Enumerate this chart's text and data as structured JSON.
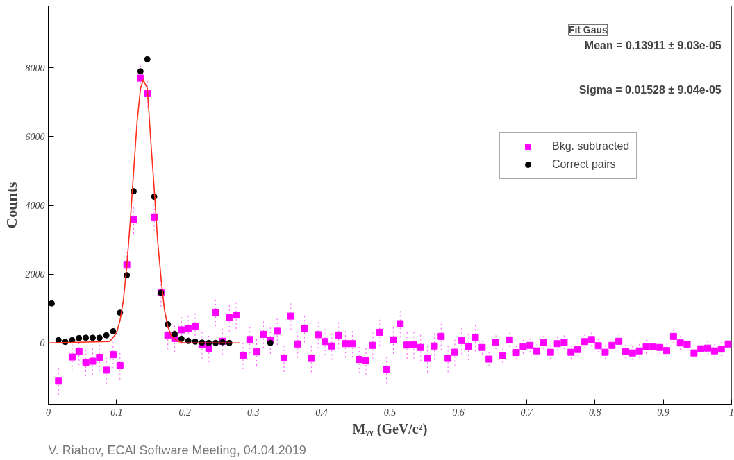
{
  "chart_data": {
    "type": "scatter",
    "xlabel": "Mᵧᵧ (GeV/c²)",
    "ylabel": "Counts",
    "xlim": [
      0,
      1
    ],
    "ylim": [
      -1800,
      9800
    ],
    "xticks": [
      0,
      0.1,
      0.2,
      0.3,
      0.4,
      0.5,
      0.6,
      0.7,
      0.8,
      0.9,
      1
    ],
    "yticks": [
      0,
      2000,
      4000,
      6000,
      8000
    ],
    "grid": false,
    "legend": "top right",
    "annotations": [
      "Fit Gaus",
      "Mean = 0.13911 ± 9.03e-05",
      "Sigma = 0.01528 ± 9.04e-05",
      "V. Riabov, ECAl Software Meeting, 04.04.2019"
    ],
    "series": [
      {
        "name": "Bkg. subtracted",
        "color": "#ff00ff",
        "marker": "square",
        "x": [
          0.015,
          0.035,
          0.045,
          0.055,
          0.065,
          0.075,
          0.085,
          0.095,
          0.105,
          0.115,
          0.125,
          0.135,
          0.145,
          0.155,
          0.165,
          0.175,
          0.185,
          0.195,
          0.205,
          0.215,
          0.225,
          0.235,
          0.245,
          0.255,
          0.265,
          0.275,
          0.285,
          0.295,
          0.305,
          0.315,
          0.325,
          0.335,
          0.345,
          0.355,
          0.365,
          0.375,
          0.385,
          0.395,
          0.405,
          0.415,
          0.425,
          0.435,
          0.445,
          0.455,
          0.465,
          0.475,
          0.485,
          0.495,
          0.505,
          0.515,
          0.525,
          0.535,
          0.545,
          0.555,
          0.565,
          0.575,
          0.585,
          0.595,
          0.605,
          0.615,
          0.625,
          0.635,
          0.645,
          0.655,
          0.665,
          0.675,
          0.685,
          0.695,
          0.705,
          0.715,
          0.725,
          0.735,
          0.745,
          0.755,
          0.765,
          0.775,
          0.785,
          0.795,
          0.805,
          0.815,
          0.825,
          0.835,
          0.845,
          0.855,
          0.865,
          0.875,
          0.885,
          0.895,
          0.905,
          0.915,
          0.925,
          0.935,
          0.945,
          0.955,
          0.965,
          0.975,
          0.985,
          0.995
        ],
        "values": [
          -1110,
          -410,
          -240,
          -560,
          -530,
          -420,
          -790,
          -340,
          -660,
          2280,
          3580,
          7700,
          7250,
          3660,
          1460,
          220,
          130,
          380,
          420,
          490,
          -50,
          -160,
          890,
          50,
          730,
          810,
          -360,
          100,
          -260,
          250,
          80,
          340,
          -440,
          780,
          -30,
          420,
          -450,
          240,
          40,
          -90,
          230,
          -20,
          -20,
          -480,
          -520,
          -70,
          310,
          -770,
          90,
          560,
          -60,
          -50,
          -130,
          -450,
          -90,
          190,
          -450,
          -270,
          70,
          -100,
          160,
          -130,
          -470,
          20,
          -370,
          90,
          -280,
          -110,
          -70,
          -230,
          10,
          -270,
          -20,
          20,
          -270,
          -190,
          40,
          100,
          -80,
          -270,
          -70,
          50,
          -250,
          -290,
          -230,
          -110,
          -110,
          -130,
          -220,
          190,
          0,
          -40,
          -290,
          -170,
          -150,
          -230,
          -180,
          -30
        ],
        "errors": [
          400,
          400,
          400,
          400,
          400,
          400,
          400,
          400,
          400,
          400,
          400,
          400,
          400,
          400,
          400,
          400,
          400,
          400,
          400,
          400,
          400,
          400,
          400,
          400,
          400,
          400,
          400,
          400,
          400,
          400,
          400,
          400,
          400,
          400,
          400,
          400,
          400,
          400,
          400,
          400,
          400,
          400,
          400,
          400,
          400,
          400,
          400,
          400,
          400,
          400,
          400,
          400,
          400,
          400,
          400,
          400,
          400,
          400,
          400,
          400,
          400,
          200,
          200,
          200,
          200,
          200,
          200,
          200,
          200,
          200,
          200,
          200,
          200,
          200,
          200,
          200,
          200,
          200,
          200,
          200,
          200,
          200,
          200,
          200,
          200,
          200,
          200,
          200,
          200,
          200,
          200,
          200,
          200,
          200,
          200,
          200,
          200,
          200
        ]
      },
      {
        "name": "Correct pairs",
        "color": "#000000",
        "marker": "circle",
        "x": [
          0.005,
          0.015,
          0.025,
          0.035,
          0.045,
          0.055,
          0.065,
          0.075,
          0.085,
          0.095,
          0.105,
          0.115,
          0.125,
          0.135,
          0.145,
          0.155,
          0.165,
          0.175,
          0.185,
          0.195,
          0.205,
          0.215,
          0.225,
          0.235,
          0.245,
          0.255,
          0.265,
          0.325
        ],
        "values": [
          1150,
          80,
          30,
          80,
          140,
          150,
          150,
          150,
          220,
          340,
          880,
          1970,
          4410,
          7900,
          8250,
          4250,
          1460,
          540,
          260,
          120,
          60,
          40,
          10,
          0,
          0,
          20,
          0,
          0
        ]
      },
      {
        "color": "#ff2a1a",
        "type": "line",
        "line_style": "solid",
        "x": [
          0,
          0.09,
          0.1,
          0.105,
          0.11,
          0.115,
          0.12,
          0.125,
          0.13,
          0.135,
          0.139,
          0.145,
          0.15,
          0.155,
          0.16,
          0.165,
          0.17,
          0.175,
          0.18,
          0.19,
          0.2,
          0.28
        ],
        "values": [
          0,
          40,
          290,
          650,
          1250,
          2250,
          3530,
          5000,
          6430,
          7400,
          7650,
          7400,
          5900,
          4500,
          2990,
          1900,
          970,
          480,
          210,
          40,
          0,
          0
        ]
      }
    ]
  }
}
